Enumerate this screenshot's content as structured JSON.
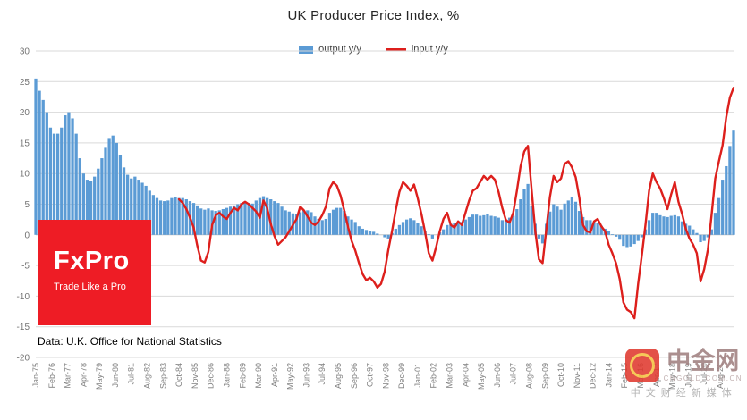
{
  "title": "UK Producer Price Index, %",
  "source_note": "Data: U.K. Office for National Statistics",
  "logo": {
    "name": "FxPro",
    "tagline": "Trade Like a Pro",
    "bg_color": "#EE1C25",
    "text_color": "#FFFFFF"
  },
  "watermark": {
    "site_name": "中金网",
    "domain": "CNGOLD.COM.CN",
    "tagline": "中文财经新媒体",
    "logo_color": "#E03A2F",
    "emblem_color": "#F5C243"
  },
  "chart_data": {
    "type": "bar",
    "subtype": "bar+line combo, monthly time series",
    "title": "UK Producer Price Index, %",
    "xlabel": "",
    "ylabel": "",
    "ylim": [
      -20,
      30
    ],
    "y_ticks": [
      30,
      25,
      20,
      15,
      10,
      5,
      0,
      -5,
      -10,
      -15,
      -20
    ],
    "grid": true,
    "legend_position": "top-center",
    "x_start": "1975-01",
    "x_end": "2022-07",
    "x_interval_months": 3,
    "x_tick_interval_months": 13,
    "x_tick_labels": [
      "Jan-75",
      "Feb-76",
      "Mar-77",
      "Apr-78",
      "May-79",
      "Jun-80",
      "Jul-81",
      "Aug-82",
      "Sep-83",
      "Oct-84",
      "Nov-85",
      "Dec-86",
      "Jan-88",
      "Feb-89",
      "Mar-90",
      "Apr-91",
      "May-92",
      "Jun-93",
      "Jul-94",
      "Aug-95",
      "Sep-96",
      "Oct-97",
      "Nov-98",
      "Dec-99",
      "Jan-01",
      "Feb-02",
      "Mar-03",
      "Apr-04",
      "May-05",
      "Jun-06",
      "Jul-07",
      "Aug-08",
      "Sep-09",
      "Oct-10",
      "Nov-11",
      "Dec-12",
      "Jan-14",
      "Feb-15",
      "Mar-16",
      "Apr-17",
      "May-18",
      "Jun-19",
      "Jul-20",
      "Aug-21"
    ],
    "series": [
      {
        "name": "output y/y",
        "type": "bar",
        "color": "#5B9BD5",
        "values": [
          25.5,
          23.5,
          22,
          20,
          17.5,
          16.5,
          16.5,
          17.5,
          19.5,
          20,
          19,
          16.5,
          12.5,
          10,
          9,
          8.8,
          9.5,
          10.8,
          12.5,
          14.2,
          15.8,
          16.2,
          15,
          13,
          11,
          9.8,
          9.2,
          9.5,
          9,
          8.5,
          8,
          7.2,
          6.5,
          6,
          5.6,
          5.5,
          5.6,
          6,
          6.2,
          6,
          6,
          5.8,
          5.5,
          5.2,
          4.8,
          4.3,
          4.1,
          4.3,
          4,
          3.9,
          4,
          4.2,
          4.4,
          4.6,
          4.8,
          5,
          5.2,
          5.3,
          5.2,
          5.1,
          5.6,
          6,
          6.3,
          6,
          5.8,
          5.5,
          5.2,
          4.6,
          4,
          3.8,
          3.5,
          3.4,
          3.7,
          4,
          4,
          3.7,
          3,
          2.6,
          2.4,
          2.6,
          3.6,
          4.1,
          4.4,
          4.4,
          3.9,
          3,
          2.5,
          2.1,
          1.4,
          1,
          0.8,
          0.7,
          0.5,
          0.2,
          0,
          -0.4,
          -0.6,
          0.3,
          1,
          1.6,
          2.1,
          2.5,
          2.7,
          2.4,
          1.9,
          1.4,
          0.7,
          0.1,
          -0.6,
          0,
          0.4,
          0.9,
          1.6,
          1.8,
          1.9,
          2,
          2.1,
          2.5,
          2.9,
          3.3,
          3.3,
          3.1,
          3.2,
          3.4,
          3.1,
          3,
          2.8,
          2.4,
          2.5,
          2.8,
          3.1,
          4.2,
          5.8,
          7.5,
          8.3,
          4.8,
          1.8,
          -0.6,
          -1.4,
          1.8,
          3.8,
          5,
          4.6,
          4.1,
          5.1,
          5.6,
          6.2,
          5.4,
          3.9,
          2.9,
          2.4,
          2.4,
          2.1,
          2,
          1.5,
          1,
          0.6,
          0.1,
          -0.3,
          -0.8,
          -1.8,
          -2,
          -1.9,
          -1.5,
          -1,
          -0.4,
          0.9,
          2.4,
          3.6,
          3.6,
          3.2,
          3,
          2.9,
          3.1,
          3.2,
          3,
          2.2,
          1.8,
          1.5,
          0.9,
          0.3,
          -1.2,
          -1,
          -0.4,
          0.9,
          3.6,
          6,
          9,
          11.2,
          14.5,
          17
        ]
      },
      {
        "name": "input y/y",
        "type": "line",
        "color": "#DD1F1C",
        "values": [
          null,
          null,
          null,
          null,
          null,
          null,
          null,
          null,
          null,
          null,
          null,
          null,
          null,
          null,
          null,
          null,
          null,
          null,
          null,
          null,
          null,
          null,
          null,
          null,
          null,
          null,
          null,
          null,
          null,
          null,
          null,
          null,
          null,
          null,
          null,
          null,
          null,
          null,
          null,
          5.8,
          5.2,
          4.2,
          2.8,
          1.2,
          -1.8,
          -4.2,
          -4.5,
          -2.8,
          1.6,
          3.2,
          3.6,
          3,
          2.6,
          3.6,
          4.4,
          4,
          5,
          5.4,
          5,
          4.4,
          3.8,
          2.8,
          5.6,
          4.4,
          1.8,
          -0.2,
          -1.6,
          -1,
          -0.4,
          0.6,
          1.6,
          2.6,
          4.6,
          4,
          3,
          2,
          1.6,
          2.2,
          3.2,
          4.6,
          7.6,
          8.6,
          8,
          6.4,
          4,
          1.4,
          -1,
          -2.6,
          -4.6,
          -6.4,
          -7.4,
          -7,
          -7.6,
          -8.6,
          -8,
          -6,
          -2.4,
          0.6,
          4,
          7,
          8.6,
          8,
          7.2,
          8.2,
          6,
          3.4,
          0.4,
          -3,
          -4.2,
          -2,
          0.6,
          2.6,
          3.6,
          1.6,
          1.2,
          2.2,
          1.6,
          3.6,
          5.6,
          7.2,
          7.6,
          8.6,
          9.6,
          9,
          9.6,
          9,
          7,
          4.4,
          2.4,
          2,
          3.6,
          7.2,
          11.2,
          13.6,
          14.5,
          7.4,
          0.6,
          -4,
          -4.6,
          0.8,
          6.2,
          9.6,
          8.6,
          9.2,
          11.6,
          12,
          11,
          9.4,
          6,
          1.6,
          0.6,
          0.4,
          2.2,
          2.6,
          1.4,
          0.6,
          -1.6,
          -3,
          -4.6,
          -7.2,
          -11,
          -12.2,
          -12.6,
          -13.6,
          -8,
          -3.4,
          1.6,
          7.2,
          10,
          8.6,
          7.6,
          6,
          4.2,
          6.6,
          8.6,
          5.4,
          3.4,
          1,
          -0.6,
          -1.6,
          -3,
          -7.6,
          -5.6,
          -2.4,
          3.2,
          9.2,
          12,
          14.6,
          19.2,
          22.4,
          24
        ]
      }
    ]
  }
}
